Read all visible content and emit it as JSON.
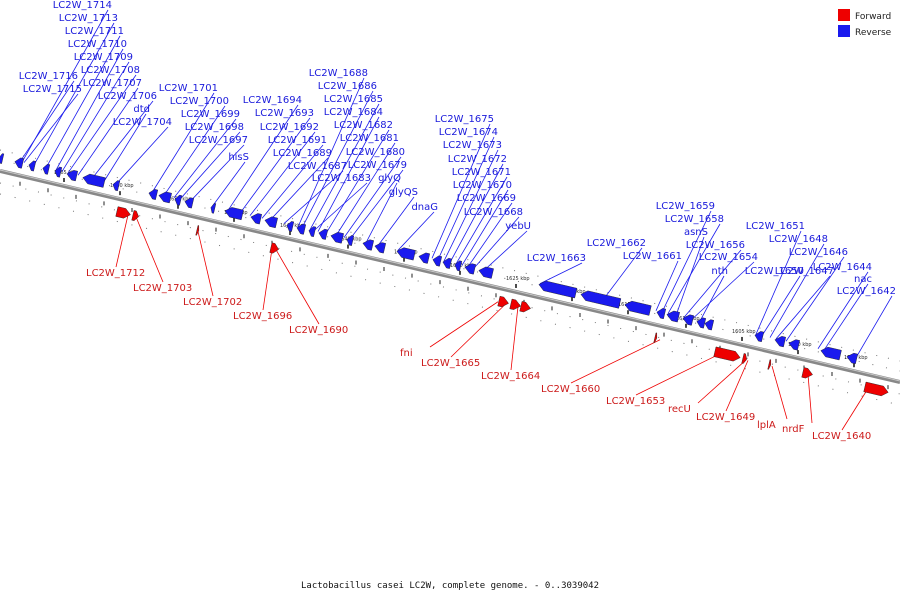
{
  "legend": [
    {
      "label": "Forward",
      "color": "#ee0000"
    },
    {
      "label": "Reverse",
      "color": "#1a1aee"
    }
  ],
  "caption": "Lactobacillus casei LC2W, complete genome. - 0..3039042",
  "colors": {
    "forward": "#ee0000",
    "reverse": "#1a1aee",
    "axis": "#555555"
  },
  "ticks": [
    "1665 kbp",
    "1660 kbp",
    "1655 kbp",
    "1650 kbp",
    "1645 kbp",
    "1640 kbp",
    "1635 kbp",
    "1630 kbp",
    "1625 kbp",
    "1620 kbp",
    "1615 kbp",
    "1610 kbp",
    "1605 kbp",
    "1600 kbp",
    "1595 kbp"
  ],
  "reverse_genes": [
    "LC2W_1714",
    "LC2W_1713",
    "LC2W_1711",
    "LC2W_1710",
    "LC2W_1709",
    "LC2W_1708",
    "LC2W_1716",
    "LC2W_1707",
    "LC2W_1715",
    "LC2W_1706",
    "dtd",
    "LC2W_1704",
    "LC2W_1701",
    "LC2W_1700",
    "LC2W_1699",
    "LC2W_1698",
    "LC2W_1697",
    "hisS",
    "LC2W_1694",
    "LC2W_1693",
    "LC2W_1692",
    "LC2W_1691",
    "LC2W_1689",
    "LC2W_1687",
    "LC2W_1688",
    "LC2W_1686",
    "LC2W_1685",
    "LC2W_1684",
    "LC2W_1682",
    "LC2W_1681",
    "LC2W_1680",
    "LC2W_1679",
    "LC2W_1683",
    "glyQ",
    "glyQS",
    "dnaG",
    "LC2W_1675",
    "LC2W_1674",
    "LC2W_1673",
    "LC2W_1672",
    "LC2W_1671",
    "LC2W_1670",
    "LC2W_1669",
    "LC2W_1668",
    "yebU",
    "LC2W_1663",
    "LC2W_1662",
    "LC2W_1661",
    "LC2W_1659",
    "LC2W_1658",
    "asnS",
    "LC2W_1656",
    "LC2W_1654",
    "nth",
    "LC2W_1651",
    "LC2W_1650",
    "LC2W_1648",
    "LC2W_1647",
    "LC2W_1646",
    "LC2W_1644",
    "nac",
    "LC2W_1642"
  ],
  "forward_genes": [
    "LC2W_1712",
    "LC2W_1703",
    "LC2W_1702",
    "LC2W_1696",
    "LC2W_1690",
    "fni",
    "LC2W_1665",
    "LC2W_1664",
    "LC2W_1660",
    "LC2W_1653",
    "recU",
    "LC2W_1649",
    "lplA",
    "nrdF",
    "LC2W_1640"
  ]
}
